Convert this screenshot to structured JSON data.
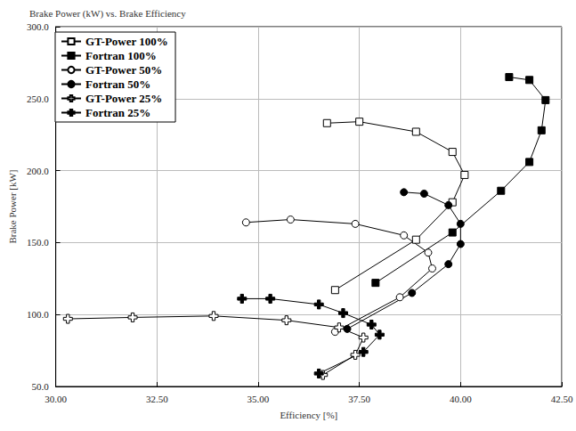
{
  "chart_data": {
    "type": "line",
    "title": "Brake Power (kW) vs. Brake Efficiency",
    "x_label": "Efficiency [%]",
    "y_label": "Brake Power [kW]",
    "xlim": [
      30,
      42.5
    ],
    "xticks": [
      {
        "value": 30,
        "label": "30.00"
      },
      {
        "value": 32.5,
        "label": "32.50"
      },
      {
        "value": 35,
        "label": "35.00"
      },
      {
        "value": 37.5,
        "label": "37.50"
      },
      {
        "value": 40,
        "label": "40.00"
      },
      {
        "value": 42.5,
        "label": "42.50"
      }
    ],
    "ylim": [
      50,
      300
    ],
    "yticks": [
      {
        "value": 50,
        "label": "50.0"
      },
      {
        "value": 100,
        "label": "100.0"
      },
      {
        "value": 150,
        "label": "150.0"
      },
      {
        "value": 200,
        "label": "200.0"
      },
      {
        "value": 250,
        "label": "250.0"
      },
      {
        "value": 300,
        "label": "300.0"
      }
    ],
    "grid": true,
    "legend": "upper left",
    "series": [
      {
        "name": "GT-Power 100%",
        "color": "#000000",
        "marker": "square-open",
        "x": [
          36.9,
          38.9,
          39.8,
          40.1,
          39.8,
          38.9,
          37.5,
          36.7
        ],
        "values": [
          117,
          152,
          178,
          197,
          213,
          227,
          234,
          233
        ]
      },
      {
        "name": "Fortran 100%",
        "color": "#000000",
        "marker": "square",
        "x": [
          37.9,
          39.8,
          41.0,
          41.7,
          42.0,
          42.1,
          41.7,
          41.2
        ],
        "values": [
          122,
          157,
          186,
          206,
          228,
          249,
          263,
          265
        ]
      },
      {
        "name": "GT-Power 50%",
        "color": "#000000",
        "marker": "circle-open",
        "x": [
          36.9,
          38.5,
          39.3,
          39.2,
          38.6,
          37.4,
          35.8,
          34.7
        ],
        "values": [
          88,
          112,
          132,
          143,
          155,
          163,
          166,
          164
        ]
      },
      {
        "name": "Fortran 50%",
        "color": "#000000",
        "marker": "circle",
        "x": [
          37.2,
          38.8,
          39.7,
          40.0,
          40.0,
          39.7,
          39.1,
          38.6
        ],
        "values": [
          90,
          115,
          135,
          149,
          163,
          176,
          184,
          185
        ]
      },
      {
        "name": "GT-Power 25%",
        "color": "#000000",
        "marker": "cross-open",
        "x": [
          36.6,
          37.4,
          37.6,
          37.0,
          35.7,
          33.9,
          31.9,
          30.3
        ],
        "values": [
          58,
          72,
          84,
          91,
          96,
          99,
          98,
          97
        ]
      },
      {
        "name": "Fortran 25%",
        "color": "#000000",
        "marker": "cross",
        "x": [
          36.5,
          37.6,
          38.0,
          37.8,
          37.1,
          36.5,
          35.3,
          34.6
        ],
        "values": [
          59,
          74,
          86,
          93,
          101,
          107,
          111,
          111
        ]
      }
    ]
  }
}
